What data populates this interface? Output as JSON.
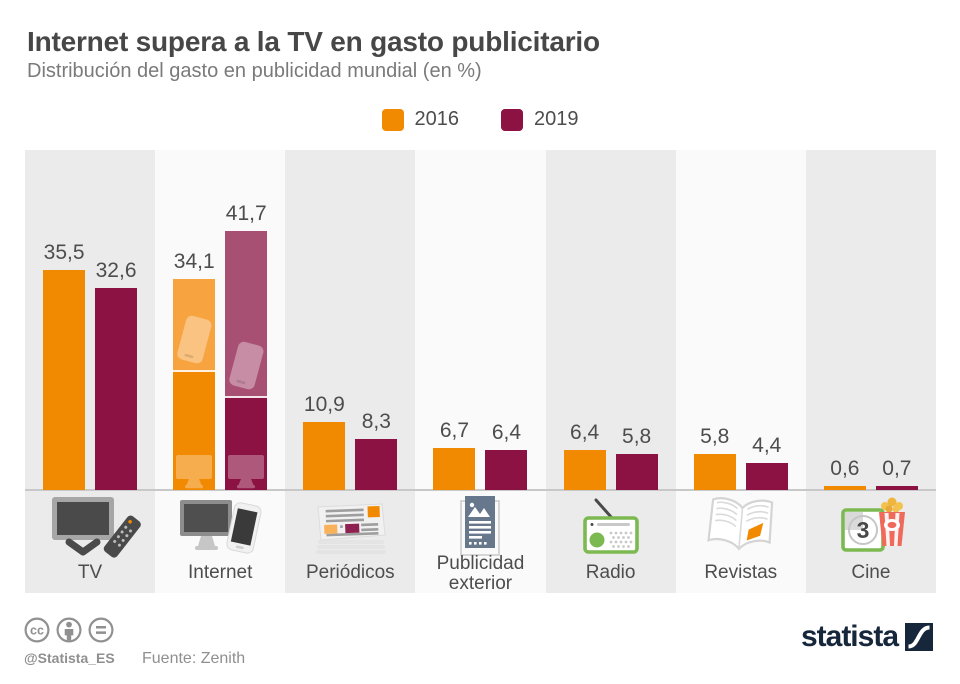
{
  "header": {
    "title": "Internet supera a la TV en gasto publicitario",
    "subtitle": "Distribución del gasto en publicidad mundial (en %)"
  },
  "legend": {
    "items": [
      {
        "label": "2016",
        "color": "#F18A00"
      },
      {
        "label": "2019",
        "color": "#8C1243"
      }
    ]
  },
  "chart_data": {
    "type": "bar",
    "title": "Internet supera a la TV en gasto publicitario",
    "subtitle": "Distribución del gasto en publicidad mundial (en %)",
    "unit": "%",
    "categories": [
      "TV",
      "Internet",
      "Periódicos",
      "Publicidad exterior",
      "Radio",
      "Revistas",
      "Cine"
    ],
    "series": [
      {
        "name": "2016",
        "color": "#F18A00",
        "light_color": "#F7A440",
        "values": [
          35.5,
          34.1,
          10.9,
          6.7,
          6.4,
          5.8,
          0.6
        ],
        "labels": [
          "35,5",
          "34,1",
          "10,9",
          "6,7",
          "6,4",
          "5,8",
          "0,6"
        ]
      },
      {
        "name": "2019",
        "color": "#8C1243",
        "light_color": "#A85073",
        "values": [
          32.6,
          41.7,
          8.3,
          6.4,
          5.8,
          4.4,
          0.7
        ],
        "labels": [
          "32,6",
          "41,7",
          "8,3",
          "6,4",
          "5,8",
          "4,4",
          "0,7"
        ]
      }
    ],
    "internet_split_estimated": {
      "note": "Internet bars are visually split: lighter top segment with smartphone icon (mobile), darker bottom segment with desktop monitor icon",
      "2016": {
        "mobile_top": 15.1,
        "desktop_bottom": 19.0
      },
      "2019": {
        "mobile_top": 26.9,
        "desktop_bottom": 14.8
      }
    },
    "ylim": [
      0,
      45
    ],
    "grid": false,
    "legend_position": "top-center",
    "category_icons": [
      "tv-icon",
      "internet-icon",
      "newspaper-icon",
      "billboard-icon",
      "radio-icon",
      "magazine-icon",
      "cinema-icon"
    ]
  },
  "colors": {
    "band_gray": "#EBEBEB",
    "band_light": "#FAFAFA",
    "baseline": "#C8C8C8",
    "brand_navy": "#16263B"
  },
  "footer": {
    "license_icons": [
      "cc-icon",
      "attribution-icon",
      "no-derivatives-icon"
    ],
    "handle": "@Statista_ES",
    "source": "Fuente: Zenith",
    "brand": "statista"
  }
}
